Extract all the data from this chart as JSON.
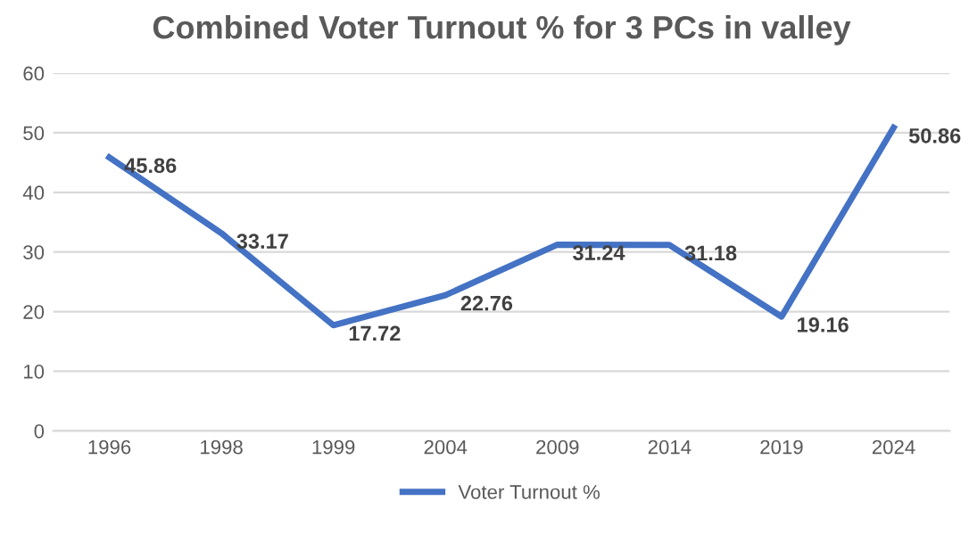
{
  "chart_data": {
    "type": "line",
    "title": "Combined Voter Turnout % for 3 PCs in valley",
    "categories": [
      "1996",
      "1998",
      "1999",
      "2004",
      "2009",
      "2014",
      "2019",
      "2024"
    ],
    "series": [
      {
        "name": "Voter Turnout %",
        "color": "#4472c4",
        "values": [
          45.86,
          33.17,
          17.72,
          22.76,
          31.24,
          31.18,
          19.16,
          50.86
        ]
      }
    ],
    "ylim": [
      0,
      60
    ],
    "yticks": [
      0,
      10,
      20,
      30,
      40,
      50,
      60
    ],
    "grid": "y",
    "legend": "bottom",
    "data_labels": true,
    "marker": "none",
    "line_style": "solid"
  }
}
